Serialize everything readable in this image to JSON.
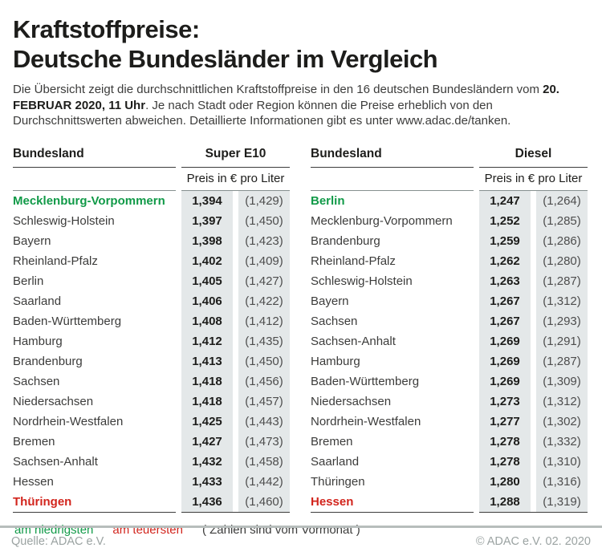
{
  "page": {
    "title_line1": "Kraftstoffpreise:",
    "title_line2": "Deutsche Bundesländer im Vergleich",
    "intro_pre": "Die Übersicht zeigt die durchschnittlichen Kraftstoffpreise in den 16 deutschen Bundesländern vom ",
    "intro_bold": "20. FEBRUAR 2020, 11 Uhr",
    "intro_post": ". Je nach Stadt oder Region können die Preise erheblich von den Durchschnittswerten abweichen. Detaillierte Informationen gibt es unter www.adac.de/tanken."
  },
  "colors": {
    "green": "#119a48",
    "red": "#d2251d",
    "shade": "#e4e8e9"
  },
  "tables": [
    {
      "id": "super-e10",
      "col_state": "Bundesland",
      "fuel": "Super E10",
      "unit": "Preis in € pro Liter",
      "rows": [
        {
          "name": "Mecklenburg-Vorpommern",
          "value": "1,394",
          "prev": "(1,429)",
          "highlight": "green"
        },
        {
          "name": "Schleswig-Holstein",
          "value": "1,397",
          "prev": "(1,450)",
          "highlight": null
        },
        {
          "name": "Bayern",
          "value": "1,398",
          "prev": "(1,423)",
          "highlight": null
        },
        {
          "name": "Rheinland-Pfalz",
          "value": "1,402",
          "prev": "(1,409)",
          "highlight": null
        },
        {
          "name": "Berlin",
          "value": "1,405",
          "prev": "(1,427)",
          "highlight": null
        },
        {
          "name": "Saarland",
          "value": "1,406",
          "prev": "(1,422)",
          "highlight": null
        },
        {
          "name": "Baden-Württemberg",
          "value": "1,408",
          "prev": "(1,412)",
          "highlight": null
        },
        {
          "name": "Hamburg",
          "value": "1,412",
          "prev": "(1,435)",
          "highlight": null
        },
        {
          "name": "Brandenburg",
          "value": "1,413",
          "prev": "(1,450)",
          "highlight": null
        },
        {
          "name": "Sachsen",
          "value": "1,418",
          "prev": "(1,456)",
          "highlight": null
        },
        {
          "name": "Niedersachsen",
          "value": "1,418",
          "prev": "(1,457)",
          "highlight": null
        },
        {
          "name": "Nordrhein-Westfalen",
          "value": "1,425",
          "prev": "(1,443)",
          "highlight": null
        },
        {
          "name": "Bremen",
          "value": "1,427",
          "prev": "(1,473)",
          "highlight": null
        },
        {
          "name": "Sachsen-Anhalt",
          "value": "1,432",
          "prev": "(1,458)",
          "highlight": null
        },
        {
          "name": "Hessen",
          "value": "1,433",
          "prev": "(1,442)",
          "highlight": null
        },
        {
          "name": "Thüringen",
          "value": "1,436",
          "prev": "(1,460)",
          "highlight": "red"
        }
      ]
    },
    {
      "id": "diesel",
      "col_state": "Bundesland",
      "fuel": "Diesel",
      "unit": "Preis in € pro Liter",
      "rows": [
        {
          "name": "Berlin",
          "value": "1,247",
          "prev": "(1,264)",
          "highlight": "green"
        },
        {
          "name": "Mecklenburg-Vorpommern",
          "value": "1,252",
          "prev": "(1,285)",
          "highlight": null
        },
        {
          "name": "Brandenburg",
          "value": "1,259",
          "prev": "(1,286)",
          "highlight": null
        },
        {
          "name": "Rheinland-Pfalz",
          "value": "1,262",
          "prev": "(1,280)",
          "highlight": null
        },
        {
          "name": "Schleswig-Holstein",
          "value": "1,263",
          "prev": "(1,287)",
          "highlight": null
        },
        {
          "name": "Bayern",
          "value": "1,267",
          "prev": "(1,312)",
          "highlight": null
        },
        {
          "name": "Sachsen",
          "value": "1,267",
          "prev": "(1,293)",
          "highlight": null
        },
        {
          "name": "Sachsen-Anhalt",
          "value": "1,269",
          "prev": "(1,291)",
          "highlight": null
        },
        {
          "name": "Hamburg",
          "value": "1,269",
          "prev": "(1,287)",
          "highlight": null
        },
        {
          "name": "Baden-Württemberg",
          "value": "1,269",
          "prev": "(1,309)",
          "highlight": null
        },
        {
          "name": "Niedersachsen",
          "value": "1,273",
          "prev": "(1,312)",
          "highlight": null
        },
        {
          "name": "Nordrhein-Westfalen",
          "value": "1,277",
          "prev": "(1,302)",
          "highlight": null
        },
        {
          "name": "Bremen",
          "value": "1,278",
          "prev": "(1,332)",
          "highlight": null
        },
        {
          "name": "Saarland",
          "value": "1,278",
          "prev": "(1,310)",
          "highlight": null
        },
        {
          "name": "Thüringen",
          "value": "1,280",
          "prev": "(1,316)",
          "highlight": null
        },
        {
          "name": "Hessen",
          "value": "1,288",
          "prev": "(1,319)",
          "highlight": "red"
        }
      ]
    }
  ],
  "legend": {
    "lowest": "am niedrigsten",
    "highest": "am teuersten",
    "note": "( Zahlen sind vom Vormonat )"
  },
  "footer": {
    "source": "Quelle: ADAC e.V.",
    "copyright": "© ADAC e.V. 02. 2020"
  },
  "chart_data": [
    {
      "type": "table",
      "title": "Super E10 — Preis in € pro Liter (Vormonat in Klammern), 20. Februar 2020, 11 Uhr",
      "columns": [
        "Bundesland",
        "Preis in € pro Liter",
        "Vormonat"
      ],
      "rows": [
        [
          "Mecklenburg-Vorpommern",
          1.394,
          1.429
        ],
        [
          "Schleswig-Holstein",
          1.397,
          1.45
        ],
        [
          "Bayern",
          1.398,
          1.423
        ],
        [
          "Rheinland-Pfalz",
          1.402,
          1.409
        ],
        [
          "Berlin",
          1.405,
          1.427
        ],
        [
          "Saarland",
          1.406,
          1.422
        ],
        [
          "Baden-Württemberg",
          1.408,
          1.412
        ],
        [
          "Hamburg",
          1.412,
          1.435
        ],
        [
          "Brandenburg",
          1.413,
          1.45
        ],
        [
          "Sachsen",
          1.418,
          1.456
        ],
        [
          "Niedersachsen",
          1.418,
          1.457
        ],
        [
          "Nordrhein-Westfalen",
          1.425,
          1.443
        ],
        [
          "Bremen",
          1.427,
          1.473
        ],
        [
          "Sachsen-Anhalt",
          1.432,
          1.458
        ],
        [
          "Hessen",
          1.433,
          1.442
        ],
        [
          "Thüringen",
          1.436,
          1.46
        ]
      ],
      "annotations": {
        "lowest": "Mecklenburg-Vorpommern",
        "highest": "Thüringen"
      }
    },
    {
      "type": "table",
      "title": "Diesel — Preis in € pro Liter (Vormonat in Klammern), 20. Februar 2020, 11 Uhr",
      "columns": [
        "Bundesland",
        "Preis in € pro Liter",
        "Vormonat"
      ],
      "rows": [
        [
          "Berlin",
          1.247,
          1.264
        ],
        [
          "Mecklenburg-Vorpommern",
          1.252,
          1.285
        ],
        [
          "Brandenburg",
          1.259,
          1.286
        ],
        [
          "Rheinland-Pfalz",
          1.262,
          1.28
        ],
        [
          "Schleswig-Holstein",
          1.263,
          1.287
        ],
        [
          "Bayern",
          1.267,
          1.312
        ],
        [
          "Sachsen",
          1.267,
          1.293
        ],
        [
          "Sachsen-Anhalt",
          1.269,
          1.291
        ],
        [
          "Hamburg",
          1.269,
          1.287
        ],
        [
          "Baden-Württemberg",
          1.269,
          1.309
        ],
        [
          "Niedersachsen",
          1.273,
          1.312
        ],
        [
          "Nordrhein-Westfalen",
          1.277,
          1.302
        ],
        [
          "Bremen",
          1.278,
          1.332
        ],
        [
          "Saarland",
          1.278,
          1.31
        ],
        [
          "Thüringen",
          1.28,
          1.316
        ],
        [
          "Hessen",
          1.288,
          1.319
        ]
      ],
      "annotations": {
        "lowest": "Berlin",
        "highest": "Hessen"
      }
    }
  ]
}
